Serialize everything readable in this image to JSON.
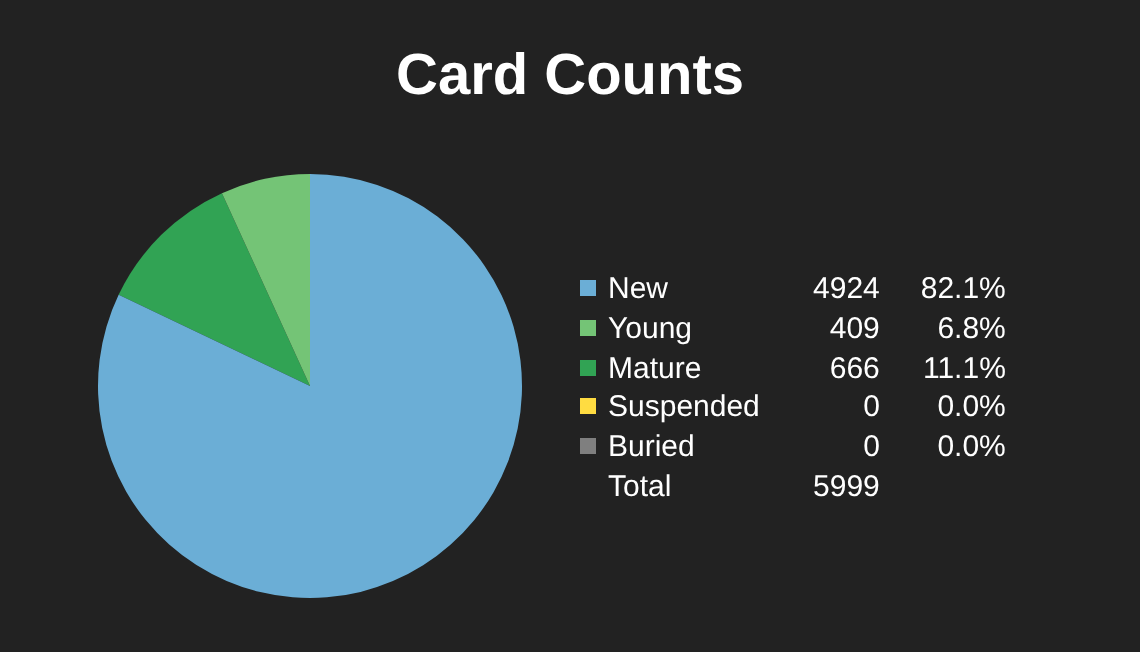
{
  "chart_data": {
    "type": "pie",
    "title": "Card Counts",
    "categories": [
      "New",
      "Young",
      "Mature",
      "Suspended",
      "Buried"
    ],
    "values": [
      4924,
      409,
      666,
      0,
      0
    ],
    "colors": [
      "#6baed6",
      "#74c476",
      "#31a354",
      "#ffdc41",
      "#7f7f7f"
    ],
    "value_labels": [
      "4924",
      "409",
      "666",
      "0",
      "0"
    ],
    "legend": "right",
    "annotations": [
      {
        "text": "82.1%",
        "x": "New"
      },
      {
        "text": "6.8%",
        "x": "Young"
      },
      {
        "text": "11.1%",
        "x": "Mature"
      },
      {
        "text": "0.0%",
        "x": "Suspended"
      },
      {
        "text": "0.0%",
        "x": "Buried"
      },
      "Total"
    ],
    "totals": [
      "5999"
    ]
  }
}
